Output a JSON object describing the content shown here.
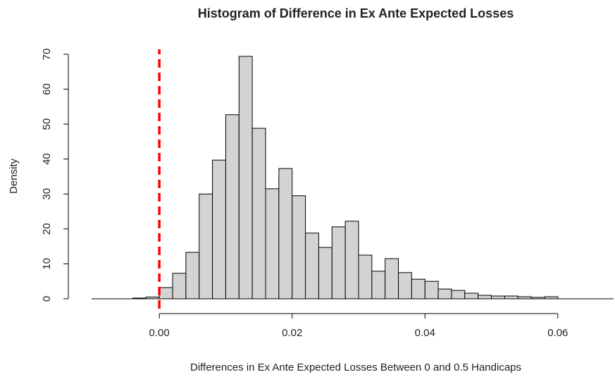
{
  "chart_data": {
    "type": "histogram",
    "title": "Histogram of Difference in Ex Ante Expected Losses",
    "x_label": "Differences in Ex Ante Expected Losses Between 0 and 0.5 Handicaps",
    "y_label": "Density",
    "bins": [
      -0.004,
      -0.002,
      0,
      0.002,
      0.004,
      0.006,
      0.008,
      0.01,
      0.012,
      0.014,
      0.016,
      0.018,
      0.02,
      0.022,
      0.024,
      0.026,
      0.028,
      0.03,
      0.032,
      0.034,
      0.036,
      0.038,
      0.04,
      0.042,
      0.044,
      0.046,
      0.048,
      0.05,
      0.052,
      0.054,
      0.056,
      0.058,
      0.06
    ],
    "values": [
      0.2,
      0.5,
      3.2,
      7.3,
      13.3,
      30,
      39.7,
      52.7,
      69.4,
      48.8,
      31.5,
      37.3,
      29.5,
      18.8,
      14.7,
      20.6,
      22.2,
      12.5,
      7.9,
      11.5,
      7.5,
      5.6,
      5.0,
      2.8,
      2.4,
      1.6,
      1.0,
      0.8,
      0.8,
      0.6,
      0.4,
      0.6
    ],
    "color": "#d3d3d3",
    "xlim": [
      -0.0102,
      0.0684
    ],
    "ylim": [
      0,
      70
    ],
    "xticks": [
      {
        "value": 0,
        "label": "0.00"
      },
      0.02,
      0.04,
      0.06
    ],
    "yticks": [
      0,
      10,
      20,
      30,
      40,
      50,
      60,
      70
    ],
    "reference_line": {
      "x": 0,
      "color": "#ff0000"
    }
  }
}
